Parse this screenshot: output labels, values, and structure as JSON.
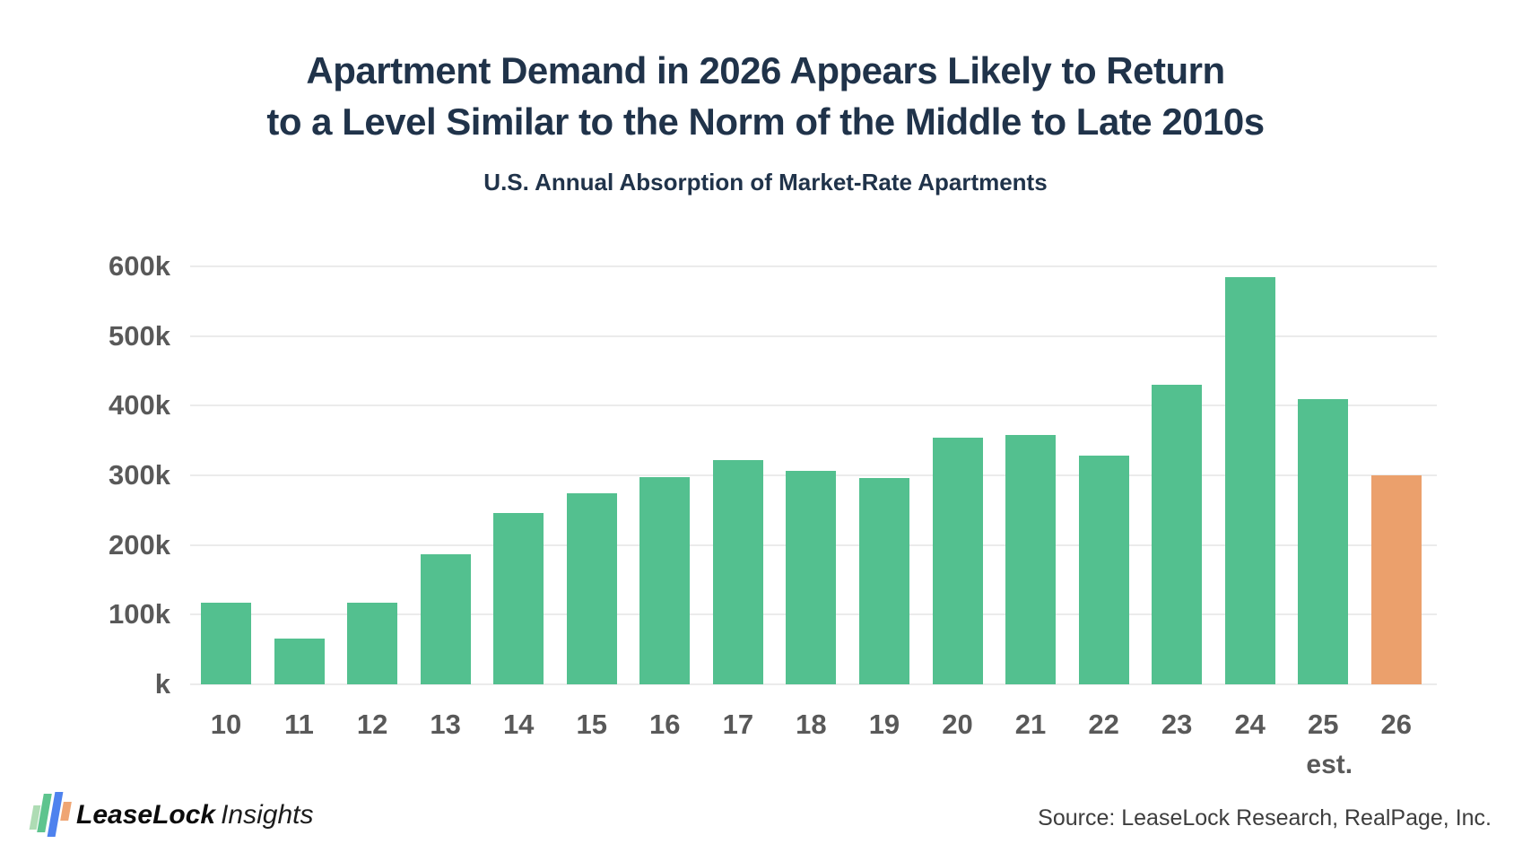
{
  "title": {
    "line1": "Apartment Demand in 2026 Appears Likely to Return",
    "line2": "to a Level Similar to the Norm of the Middle to Late 2010s"
  },
  "subtitle": "U.S. Annual Absorption of Market-Rate Apartments",
  "chart_data": {
    "type": "bar",
    "title": "U.S. Annual Absorption of Market-Rate Apartments",
    "categories": [
      "10",
      "11",
      "12",
      "13",
      "14",
      "15",
      "16",
      "17",
      "18",
      "19",
      "20",
      "21",
      "22",
      "23",
      "24",
      "25",
      "26"
    ],
    "values": [
      117,
      66,
      117,
      187,
      246,
      274,
      298,
      322,
      307,
      296,
      354,
      358,
      328,
      430,
      585,
      410,
      300
    ],
    "values_unit": "thousands of apartments",
    "highlight_index": 16,
    "highlight_note": "2026 value is an estimate, shown in orange",
    "x_sub_label": {
      "index": 15,
      "text": "est."
    },
    "yticks": [
      {
        "label": "600k",
        "value": 600
      },
      {
        "label": "500k",
        "value": 500
      },
      {
        "label": "400k",
        "value": 400
      },
      {
        "label": "300k",
        "value": 300
      },
      {
        "label": "200k",
        "value": 200
      },
      {
        "label": "100k",
        "value": 100
      },
      {
        "label": "k",
        "value": 0
      }
    ],
    "ylim": [
      0,
      600
    ],
    "grid": true,
    "legend": "none",
    "bar_color": "#53c08f",
    "highlight_color": "#eba06c",
    "grid_color": "#ebebeb",
    "axis_label_color": "#595959"
  },
  "footer": {
    "logo_lease": "LeaseLock",
    "logo_insights": "Insights",
    "source": "Source: LeaseLock Research, RealPage, Inc.",
    "logo_bar_colors": [
      "#aedcb4",
      "#5ec48e",
      "#4e82ee",
      "#efa573"
    ]
  }
}
